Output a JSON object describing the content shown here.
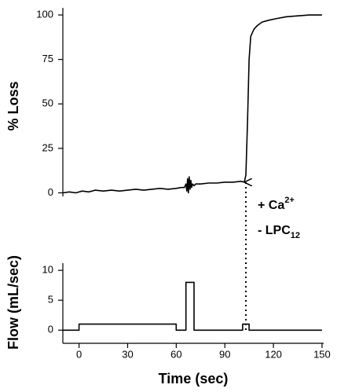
{
  "chart_data": [
    {
      "type": "line",
      "ylabel": "% Loss",
      "xlim": [
        -10,
        151
      ],
      "ylim": [
        -2,
        104
      ],
      "yticks": [
        0,
        25,
        50,
        75,
        100
      ],
      "series": [
        {
          "name": null,
          "color": "#000000",
          "x": [
            -10,
            -6,
            -2,
            2,
            6,
            10,
            15,
            20,
            25,
            30,
            35,
            40,
            45,
            50,
            55,
            60,
            63,
            65,
            66,
            66.5,
            67,
            67.5,
            68,
            68.5,
            69,
            69.5,
            70,
            71,
            72,
            75,
            80,
            85,
            90,
            95,
            100,
            102,
            103,
            104,
            105,
            106,
            108,
            110,
            113,
            117,
            122,
            128,
            135,
            142,
            150
          ],
          "values": [
            0,
            0.5,
            0,
            1,
            0.5,
            1.5,
            1,
            1.5,
            1,
            1.5,
            2,
            1.5,
            2,
            2.5,
            2,
            2.5,
            3,
            3,
            5,
            1,
            8,
            0,
            9,
            2,
            7,
            3,
            5,
            4,
            5,
            5,
            5.5,
            5.5,
            6,
            6,
            6.5,
            6,
            10,
            40,
            75,
            88,
            92,
            94,
            96,
            97,
            98,
            99,
            99.5,
            100,
            100
          ]
        }
      ],
      "annotations": [
        {
          "text": "+ Ca",
          "sup": "2+"
        },
        {
          "text": "-  LPC",
          "sub": "12"
        }
      ]
    },
    {
      "type": "line",
      "ylabel": "Flow (mL/sec)",
      "xlabel": "Time (sec)",
      "xlim": [
        -10,
        151
      ],
      "xticks": [
        0,
        30,
        60,
        90,
        120,
        150
      ],
      "ylim": [
        -2.2,
        11.2
      ],
      "yticks": [
        0,
        5,
        10
      ],
      "series": [
        {
          "name": null,
          "color": "#000000",
          "x": [
            -10,
            0,
            0,
            60,
            60,
            66,
            66,
            71,
            71,
            101,
            101,
            105,
            105,
            150
          ],
          "values": [
            0,
            0,
            1,
            1,
            0,
            0,
            8,
            8,
            0,
            0,
            1,
            1,
            0,
            0
          ]
        }
      ]
    }
  ]
}
